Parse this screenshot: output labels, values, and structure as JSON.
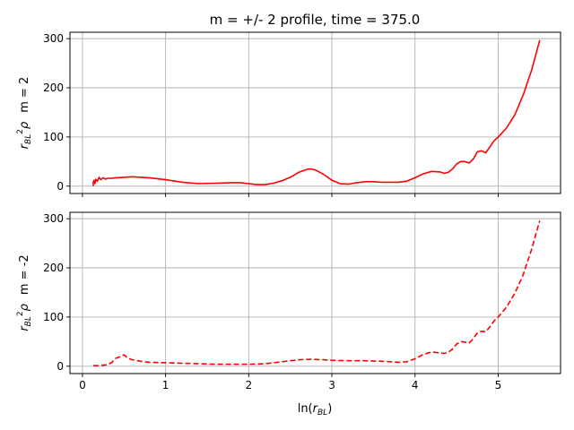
{
  "chart_data": {
    "type": "line",
    "title": "m = +/- 2 profile, time = 375.0",
    "xlabel": "ln(r_BL)",
    "xlim": [
      -0.15,
      5.75
    ],
    "xticks": [
      0,
      1,
      2,
      3,
      4,
      5
    ],
    "grid": true,
    "color": "#ff0000",
    "panels": [
      {
        "ylabel": "r_BL^2 ρ  m = 2",
        "ylim": [
          -15,
          313
        ],
        "yticks": [
          0,
          100,
          200,
          300
        ],
        "show_xtick_labels": false,
        "linestyle": "solid",
        "series": [
          {
            "x": [
              0.13,
              0.13,
              0.14,
              0.15,
              0.16,
              0.18,
              0.2,
              0.22,
              0.25,
              0.28,
              0.3,
              0.35,
              0.4,
              0.5,
              0.6,
              0.7,
              0.8,
              1.0,
              1.2,
              1.4,
              1.6,
              1.8,
              1.9,
              2.0,
              2.1,
              2.2,
              2.3,
              2.4,
              2.5,
              2.6,
              2.7,
              2.75,
              2.8,
              2.9,
              3.0,
              3.1,
              3.2,
              3.3,
              3.4,
              3.5,
              3.6,
              3.7,
              3.8,
              3.9,
              4.0,
              4.1,
              4.2,
              4.3,
              4.35,
              4.4,
              4.45,
              4.5,
              4.55,
              4.6,
              4.65,
              4.7,
              4.75,
              4.8,
              4.85,
              4.9,
              4.95,
              5.0,
              5.1,
              5.2,
              5.3,
              5.4,
              5.5
            ],
            "y": [
              0,
              8,
              12,
              5,
              14,
              10,
              18,
              13,
              17,
              14,
              16,
              16,
              17,
              18,
              19,
              18,
              17,
              13,
              8,
              5,
              6,
              7,
              7,
              5,
              3,
              3,
              6,
              11,
              18,
              28,
              34,
              35,
              33,
              24,
              12,
              5,
              4,
              7,
              9,
              9,
              8,
              8,
              8,
              10,
              17,
              25,
              30,
              29,
              26,
              28,
              35,
              45,
              50,
              50,
              47,
              55,
              70,
              72,
              68,
              80,
              92,
              100,
              118,
              145,
              185,
              235,
              297
            ]
          }
        ]
      },
      {
        "ylabel": "r_BL^2 ρ  m = -2",
        "ylim": [
          -15,
          313
        ],
        "yticks": [
          0,
          100,
          200,
          300
        ],
        "show_xtick_labels": true,
        "linestyle": "dashed",
        "series": [
          {
            "x": [
              0.13,
              0.2,
              0.25,
              0.3,
              0.35,
              0.4,
              0.45,
              0.5,
              0.55,
              0.6,
              0.7,
              0.8,
              1.0,
              1.2,
              1.4,
              1.6,
              1.8,
              2.0,
              2.2,
              2.4,
              2.6,
              2.75,
              2.9,
              3.0,
              3.2,
              3.4,
              3.6,
              3.7,
              3.8,
              3.9,
              4.0,
              4.1,
              4.2,
              4.3,
              4.35,
              4.4,
              4.45,
              4.5,
              4.55,
              4.6,
              4.65,
              4.7,
              4.75,
              4.8,
              4.85,
              4.9,
              4.95,
              5.0,
              5.1,
              5.2,
              5.3,
              5.4,
              5.5
            ],
            "y": [
              1,
              1,
              2,
              3,
              7,
              16,
              19,
              23,
              16,
              13,
              10,
              8,
              7,
              6,
              5,
              4,
              4,
              4,
              5,
              9,
              13,
              14,
              13,
              12,
              11,
              11,
              10,
              9,
              8,
              9,
              15,
              24,
              29,
              27,
              26,
              28,
              35,
              45,
              50,
              49,
              47,
              56,
              68,
              71,
              70,
              80,
              92,
              100,
              120,
              148,
              186,
              237,
              296
            ]
          }
        ]
      }
    ]
  }
}
